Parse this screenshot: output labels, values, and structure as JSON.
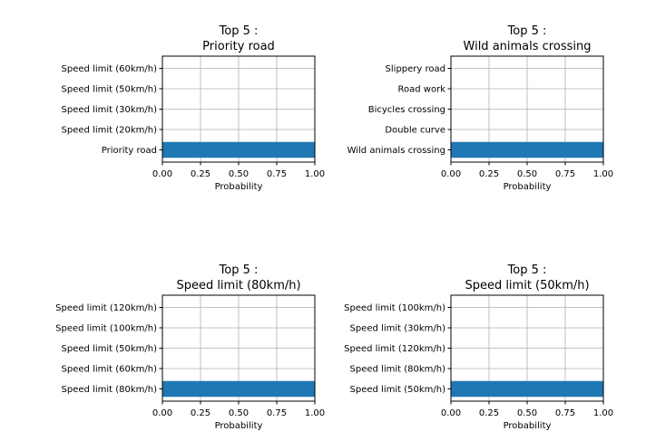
{
  "chart_data": [
    {
      "type": "bar",
      "orientation": "horizontal",
      "title_line1": "Top 5 :",
      "title_line2": "Priority road",
      "categories": [
        "Priority road",
        "Speed limit (20km/h)",
        "Speed limit (30km/h)",
        "Speed limit (50km/h)",
        "Speed limit (60km/h)"
      ],
      "values": [
        1.0,
        0.0,
        0.0,
        0.0,
        0.0
      ],
      "xlabel": "Probability",
      "xlim": [
        0,
        1
      ],
      "xticks": [
        "0.00",
        "0.25",
        "0.50",
        "0.75",
        "1.00"
      ],
      "grid": true,
      "color": "#1f77b4"
    },
    {
      "type": "bar",
      "orientation": "horizontal",
      "title_line1": "Top 5 :",
      "title_line2": "Wild animals crossing",
      "categories": [
        "Wild animals crossing",
        "Double curve",
        "Bicycles crossing",
        "Road work",
        "Slippery road"
      ],
      "values": [
        1.0,
        0.0,
        0.0,
        0.0,
        0.0
      ],
      "xlabel": "Probability",
      "xlim": [
        0,
        1
      ],
      "xticks": [
        "0.00",
        "0.25",
        "0.50",
        "0.75",
        "1.00"
      ],
      "grid": true,
      "color": "#1f77b4"
    },
    {
      "type": "bar",
      "orientation": "horizontal",
      "title_line1": "Top 5 :",
      "title_line2": "Speed limit (80km/h)",
      "categories": [
        "Speed limit (80km/h)",
        "Speed limit (60km/h)",
        "Speed limit (50km/h)",
        "Speed limit (100km/h)",
        "Speed limit (120km/h)"
      ],
      "values": [
        1.0,
        0.0,
        0.0,
        0.0,
        0.0
      ],
      "xlabel": "Probability",
      "xlim": [
        0,
        1
      ],
      "xticks": [
        "0.00",
        "0.25",
        "0.50",
        "0.75",
        "1.00"
      ],
      "grid": true,
      "color": "#1f77b4"
    },
    {
      "type": "bar",
      "orientation": "horizontal",
      "title_line1": "Top 5 :",
      "title_line2": "Speed limit (50km/h)",
      "categories": [
        "Speed limit (50km/h)",
        "Speed limit (80km/h)",
        "Speed limit (120km/h)",
        "Speed limit (30km/h)",
        "Speed limit (100km/h)"
      ],
      "values": [
        1.0,
        0.0,
        0.0,
        0.0,
        0.0
      ],
      "xlabel": "Probability",
      "xlim": [
        0,
        1
      ],
      "xticks": [
        "0.00",
        "0.25",
        "0.50",
        "0.75",
        "1.00"
      ],
      "grid": true,
      "color": "#1f77b4"
    }
  ]
}
